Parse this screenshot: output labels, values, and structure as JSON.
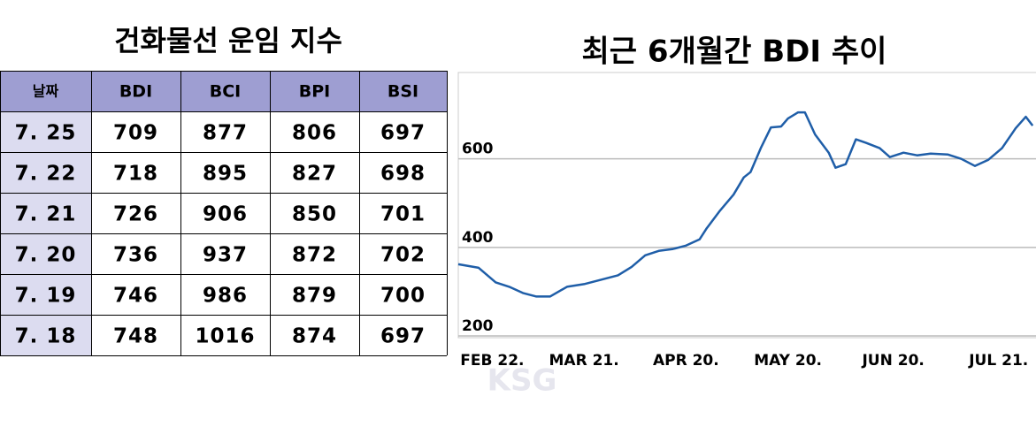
{
  "table": {
    "title": "건화물선 운임 지수",
    "columns": [
      "날짜",
      "BDI",
      "BCI",
      "BPI",
      "BSI"
    ],
    "rows": [
      [
        "7. 25",
        "709",
        "877",
        "806",
        "697"
      ],
      [
        "7. 22",
        "718",
        "895",
        "827",
        "698"
      ],
      [
        "7. 21",
        "726",
        "906",
        "850",
        "701"
      ],
      [
        "7. 20",
        "736",
        "937",
        "872",
        "702"
      ],
      [
        "7. 19",
        "746",
        "986",
        "879",
        "700"
      ],
      [
        "7. 18",
        "748",
        "1016",
        "874",
        "697"
      ]
    ]
  },
  "watermark": "KSG",
  "chart_data": {
    "type": "line",
    "title": "최근 6개월간 BDI 추이",
    "x": [
      43,
      49,
      54,
      58,
      62,
      66,
      70,
      75,
      80,
      85,
      90,
      94,
      98,
      102,
      106,
      110,
      114,
      116,
      120,
      124,
      127,
      129,
      132,
      135,
      138,
      140,
      143,
      145,
      148,
      152,
      154,
      157,
      160,
      163,
      167,
      170,
      174,
      178,
      182,
      187,
      191,
      195,
      199,
      203,
      207,
      210,
      212
    ],
    "series": [
      {
        "name": "BDI",
        "color": "#1f5ea8",
        "values": [
          362,
          354,
          321,
          311,
          297,
          289,
          289,
          311,
          317,
          327,
          337,
          356,
          382,
          392,
          396,
          404,
          418,
          442,
          483,
          519,
          558,
          570,
          624,
          671,
          673,
          691,
          705,
          705,
          655,
          614,
          580,
          588,
          644,
          636,
          624,
          604,
          614,
          608,
          612,
          610,
          600,
          584,
          598,
          624,
          669,
          695,
          675
        ]
      }
    ],
    "xlim": [
      43,
      213
    ],
    "xticks": [
      {
        "value": 53,
        "label": "FEB 22."
      },
      {
        "value": 80,
        "label": "MAR 21."
      },
      {
        "value": 110,
        "label": "APR 20."
      },
      {
        "value": 140,
        "label": "MAY 20."
      },
      {
        "value": 171,
        "label": "JUN 20."
      },
      {
        "value": 202,
        "label": "JUL 21."
      }
    ],
    "ylim": [
      200,
      795
    ],
    "yticks": [
      200,
      400,
      600
    ],
    "grid": true
  }
}
